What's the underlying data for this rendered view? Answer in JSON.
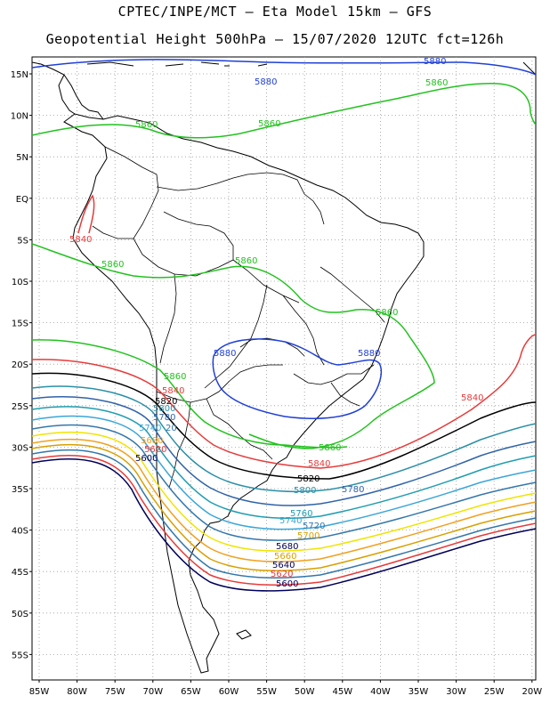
{
  "title": {
    "line1": "CPTEC/INPE/MCT –  Eta Model 15km – GFS",
    "line2": "Geopotential Height 500hPa – 15/07/2020 12UTC fct=126h"
  },
  "axes": {
    "lat_labels": [
      "15N",
      "10N",
      "5N",
      "EQ",
      "5S",
      "10S",
      "15S",
      "20S",
      "25S",
      "30S",
      "35S",
      "40S",
      "45S",
      "50S",
      "55S"
    ],
    "lon_labels": [
      "85W",
      "80W",
      "75W",
      "70W",
      "65W",
      "60W",
      "55W",
      "50W",
      "45W",
      "40W",
      "35W",
      "30W",
      "25W",
      "20W"
    ]
  },
  "colors": {
    "c5880": "#1f3fd6",
    "c5860": "#22c21e",
    "c5840": "#e63b3b",
    "c5820": "#000000",
    "c5800": "#2a8fa8",
    "c5780": "#2f63a8",
    "c5760": "#1f9db0",
    "c5740": "#3aa6d8",
    "c5720": "#3377aa",
    "c5700": "#f0e400",
    "c5680": "#f0a020",
    "c5660": "#d8a000",
    "c5620": "#e63b3b",
    "c5600": "#00005a",
    "coast": "#000000",
    "grid": "#9a9a9a"
  },
  "contour_labels": {
    "l1": "5880",
    "l2": "5880",
    "l3": "5860",
    "l4": "5860",
    "l5": "5860",
    "l6": "5840",
    "l7": "5860",
    "l8": "5860",
    "l9": "5860",
    "l10": "5880",
    "l11": "5880",
    "l12": "5860",
    "l13": "5840",
    "l14": "5820",
    "l15": "5800",
    "l16": "5780",
    "l17": "5740",
    "l18": "20",
    "l19": "5680",
    "l20": "5620",
    "l21": "5600",
    "l22": "5860",
    "l23": "5840",
    "l24": "5820",
    "l25": "5800",
    "l26": "5780",
    "l27": "5760",
    "l28": "5740",
    "l29": "5720",
    "l30": "5700",
    "l31": "5680",
    "l32": "5660",
    "l33": "5640",
    "l34": "5620",
    "l35": "5600",
    "l36": "5840",
    "l37": "5"
  }
}
